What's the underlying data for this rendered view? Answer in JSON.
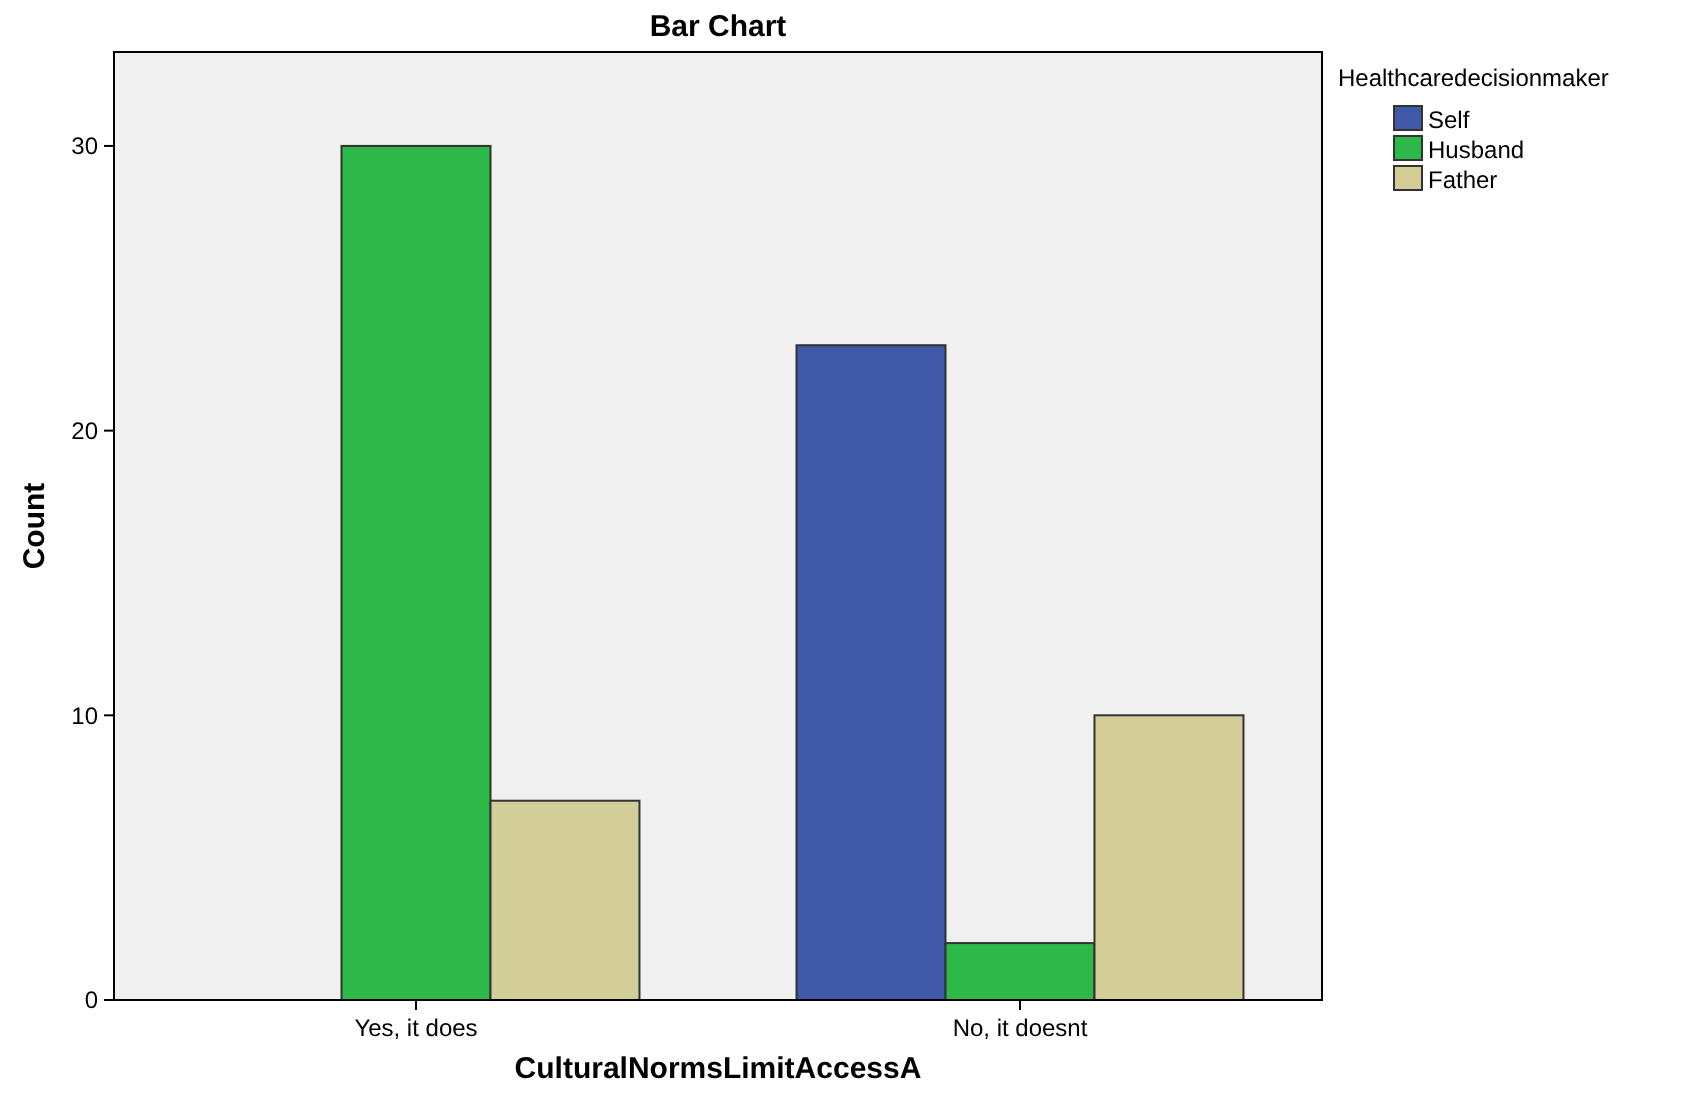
{
  "chart_data": {
    "type": "bar",
    "title": "Bar Chart",
    "xlabel": "CulturalNormsLimitAccessA",
    "ylabel": "Count",
    "legend_title": "Healthcaredecisionmaker",
    "categories": [
      "Yes, it does",
      "No, it doesnt"
    ],
    "series": [
      {
        "name": "Self",
        "color": "#3f58a8",
        "values": [
          null,
          23
        ]
      },
      {
        "name": "Husband",
        "color": "#2eb84a",
        "values": [
          30,
          2
        ]
      },
      {
        "name": "Father",
        "color": "#d3cd98",
        "values": [
          7,
          10
        ]
      }
    ],
    "ylim": [
      0,
      33.3
    ],
    "yticks": [
      0,
      10,
      20,
      30
    ],
    "grid": false,
    "legend": "top right"
  }
}
